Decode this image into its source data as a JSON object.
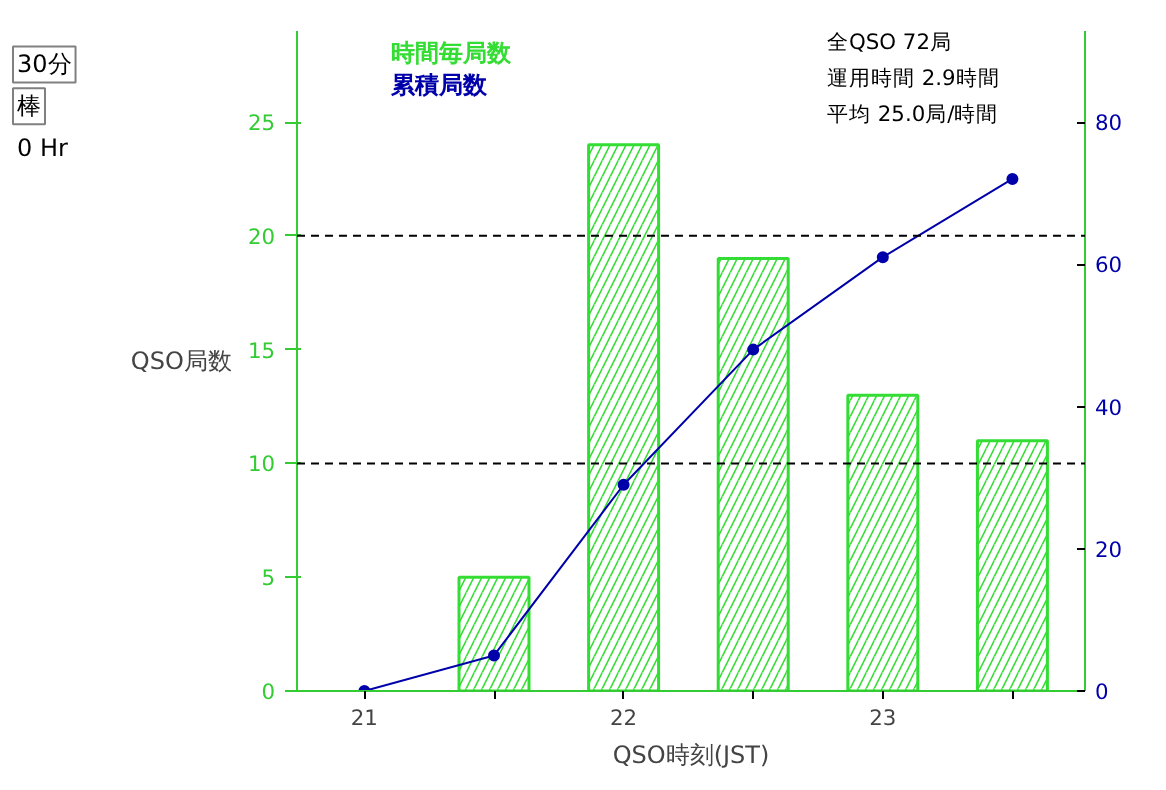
{
  "chart_data": {
    "type": "bar",
    "xlabel": "QSO時刻(JST)",
    "ylabel": "QSO局数",
    "xlim": [
      20.74,
      23.78
    ],
    "xticks": [
      21,
      {
        "value": 21.5,
        "label": null
      },
      22,
      {
        "value": 22.5,
        "label": null
      },
      23,
      {
        "value": 23.5,
        "label": null
      }
    ],
    "ylim": [
      0,
      29
    ],
    "yticks": [
      0,
      5,
      10,
      15,
      20,
      25
    ],
    "y2lim": [
      0,
      92.8
    ],
    "y2ticks": [
      0,
      20,
      40,
      60,
      80
    ],
    "grid": false,
    "marker": "circle",
    "ref_lines": [
      {
        "axis": "y",
        "value": 10,
        "color": "#000000",
        "line_style": "dashed"
      },
      {
        "axis": "y",
        "value": 20,
        "color": "#000000",
        "line_style": "dashed"
      }
    ],
    "annotations": [
      "全QSO 72局",
      "運用時間 2.9時間",
      "平均 25.0局/時間",
      "30分",
      "棒",
      "0 Hr"
    ],
    "series": [
      {
        "name": "時間毎局数",
        "color": "#33dd33",
        "x": [
          21.5,
          22,
          22.5,
          23,
          23.5
        ],
        "values": [
          5,
          24,
          19,
          13,
          11
        ]
      },
      {
        "name": "累積局数",
        "type": "line",
        "axis": "y2",
        "color": "#0000aa",
        "x": [
          21,
          21.5,
          22,
          22.5,
          23,
          23.5
        ],
        "values": [
          0,
          5,
          29,
          48,
          61,
          72
        ]
      }
    ]
  }
}
